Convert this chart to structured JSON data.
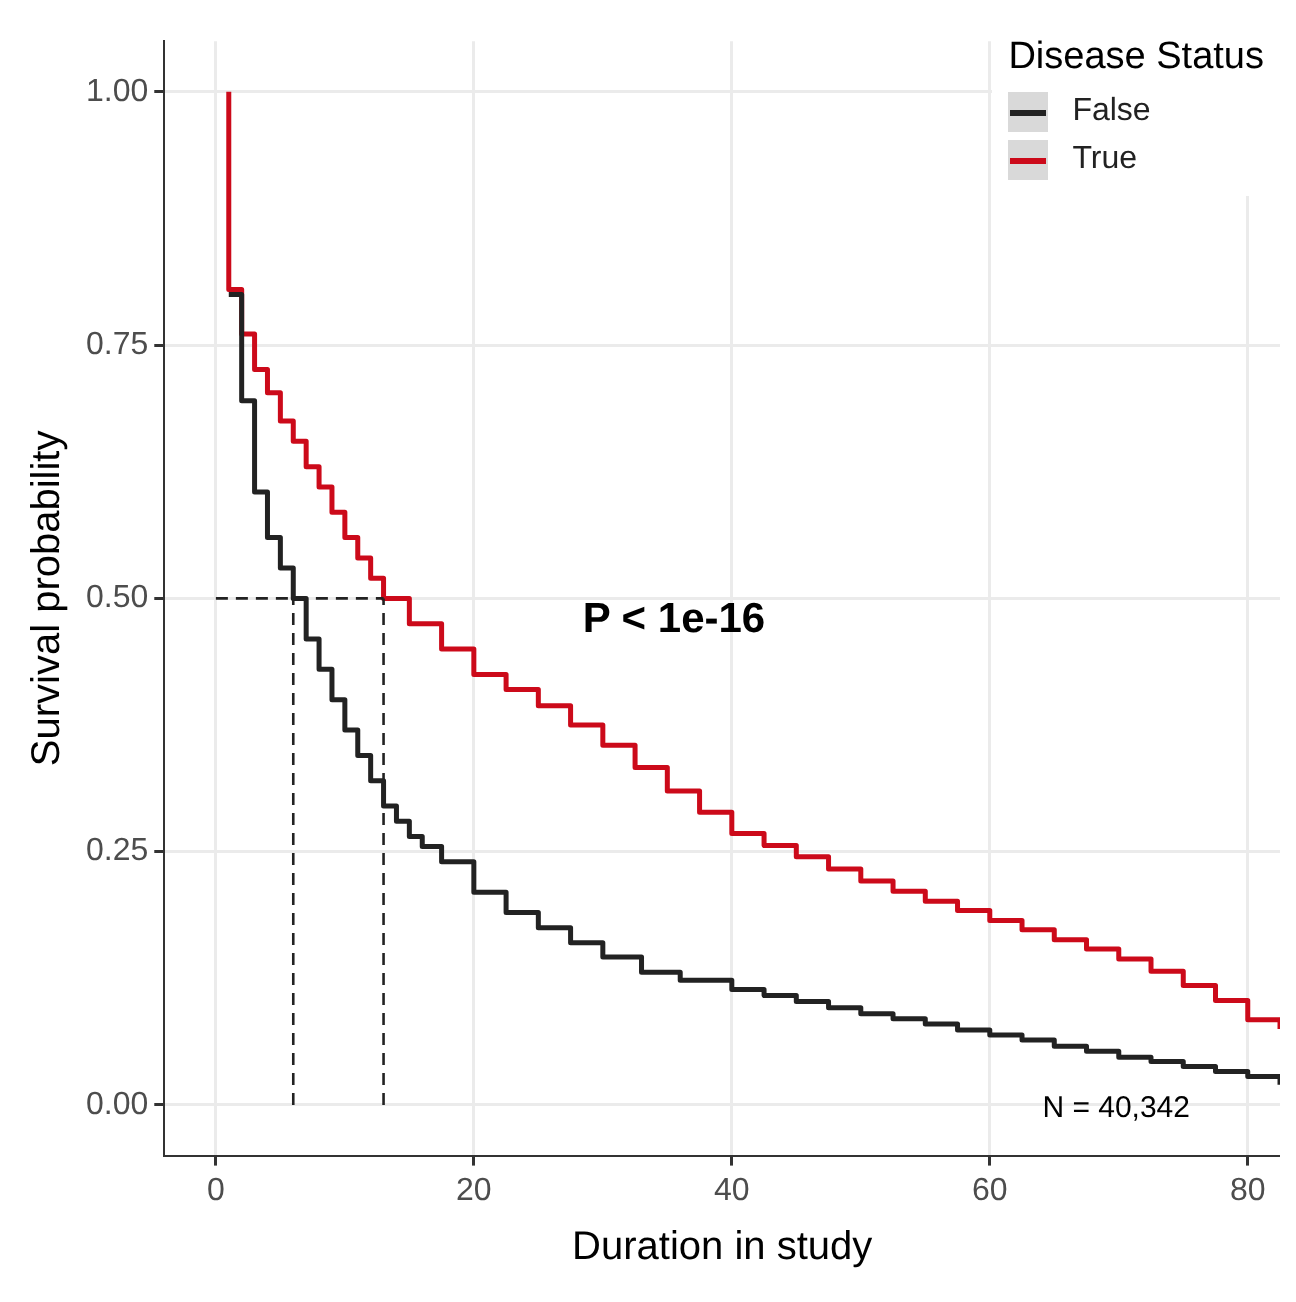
{
  "chart_data": {
    "type": "step",
    "xlabel": "Duration in study",
    "ylabel": "Survival probability",
    "legend_title": "Disease Status",
    "legend": "top right",
    "grid": true,
    "line_style": "solid",
    "marker": "none",
    "xlim": [
      -4,
      82.5
    ],
    "ylim": [
      -0.05,
      1.05
    ],
    "xticks": [
      0,
      20,
      40,
      60,
      80
    ],
    "yticks": [
      {
        "value": 0,
        "label": "0.00"
      },
      {
        "value": 0.25,
        "label": "0.25"
      },
      {
        "value": 0.5,
        "label": "0.50"
      },
      {
        "value": 0.75,
        "label": "0.75"
      },
      {
        "value": 1,
        "label": "1.00"
      }
    ],
    "series": [
      {
        "name": "False",
        "color": "#222222",
        "x": [
          1,
          2,
          3,
          4,
          5,
          6,
          7,
          8,
          9,
          10,
          11,
          12,
          13,
          14,
          15,
          16,
          17.5,
          20,
          22.5,
          25,
          27.5,
          30,
          33,
          36,
          40,
          42.5,
          45,
          47.5,
          50,
          52.5,
          55,
          57.5,
          60,
          62.5,
          65,
          67.5,
          70,
          72.5,
          75,
          77.5,
          80,
          82.5
        ],
        "values": [
          0.8,
          0.695,
          0.605,
          0.56,
          0.53,
          0.5,
          0.46,
          0.43,
          0.4,
          0.37,
          0.345,
          0.32,
          0.295,
          0.28,
          0.265,
          0.255,
          0.24,
          0.21,
          0.19,
          0.175,
          0.16,
          0.146,
          0.131,
          0.123,
          0.114,
          0.108,
          0.102,
          0.096,
          0.09,
          0.085,
          0.08,
          0.074,
          0.069,
          0.064,
          0.058,
          0.053,
          0.047,
          0.043,
          0.038,
          0.033,
          0.028,
          0.02
        ]
      },
      {
        "name": "True",
        "color": "#cc0a1a",
        "x": [
          1,
          1,
          2,
          3,
          4,
          5,
          6,
          7,
          8,
          9,
          10,
          11,
          12,
          13,
          15,
          17.5,
          20,
          22.5,
          25,
          27.5,
          30,
          32.5,
          35,
          37.5,
          40,
          42.5,
          45,
          47.5,
          50,
          52.5,
          55,
          57.5,
          60,
          62.5,
          65,
          67.5,
          70,
          72.5,
          75,
          77.5,
          80,
          82.5
        ],
        "values": [
          1,
          0.805,
          0.761,
          0.726,
          0.703,
          0.675,
          0.655,
          0.63,
          0.61,
          0.585,
          0.56,
          0.54,
          0.52,
          0.5,
          0.475,
          0.45,
          0.425,
          0.41,
          0.394,
          0.375,
          0.355,
          0.333,
          0.31,
          0.289,
          0.268,
          0.256,
          0.245,
          0.233,
          0.221,
          0.211,
          0.201,
          0.192,
          0.182,
          0.173,
          0.163,
          0.154,
          0.144,
          0.132,
          0.118,
          0.103,
          0.084,
          0.075
        ]
      }
    ],
    "ref_lines": [
      {
        "axis": "y",
        "value": 0.5,
        "line_style": "dashed",
        "color": "#222222"
      },
      {
        "axis": "x",
        "value": 6,
        "line_style": "dashed",
        "color": "#222222"
      },
      {
        "axis": "x",
        "value": 13,
        "line_style": "dashed",
        "color": "#222222"
      }
    ],
    "annotations": [
      "P < 1e-16",
      "N = 40,342"
    ]
  }
}
